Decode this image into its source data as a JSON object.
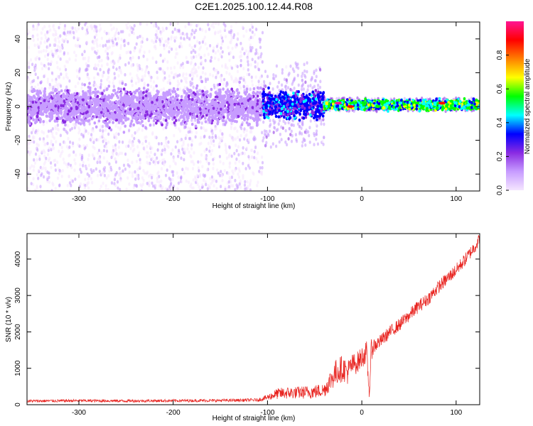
{
  "title": "C2E1.2025.100.12.44.R08",
  "colors": {
    "background": "#ffffff",
    "snr_line": "#e8231f",
    "colormap": [
      "#f5e6ff",
      "#c79cff",
      "#8a2be2",
      "#0000ff",
      "#00ffff",
      "#00ff00",
      "#ffff00",
      "#ff7f00",
      "#ff0000",
      "#ff1493"
    ]
  },
  "chart_data": [
    {
      "type": "heatmap",
      "xlabel": "Height of straight line (km)",
      "ylabel": "Frequency (Hz)",
      "xlim": [
        -355,
        125
      ],
      "ylim": [
        -50,
        50
      ],
      "xticks": [
        -300,
        -200,
        -100,
        0,
        100
      ],
      "yticks": [
        -40,
        -20,
        0,
        20,
        40
      ],
      "xtick_labels": [
        "-300",
        "-200",
        "-100",
        "0",
        "100"
      ],
      "ytick_labels": [
        "-40",
        "-20",
        "0",
        "20",
        "40"
      ],
      "colorbar": {
        "label": "Normalized spectral amplitude",
        "range": [
          0,
          1
        ],
        "ticks": [
          0.0,
          0.2,
          0.4,
          0.6,
          0.8
        ],
        "tick_labels": [
          "0.0",
          "0.2",
          "0.4",
          "0.6",
          "0.8"
        ]
      },
      "regions": [
        {
          "x_range": [
            -355,
            -105
          ],
          "center_freq": 0,
          "band_halfwidth": 8,
          "scatter_halfwidth": 50,
          "amplitude": 0.15
        },
        {
          "x_range": [
            -105,
            -40
          ],
          "center_freq": 1,
          "band_halfwidth": 6,
          "scatter_halfwidth": 25,
          "amplitude": 0.35
        },
        {
          "x_range": [
            -40,
            125
          ],
          "center_freq": 1,
          "band_halfwidth": 2,
          "scatter_halfwidth": 4,
          "amplitude": 0.55
        }
      ],
      "peaks": [
        {
          "x": -25,
          "freq": 2,
          "amplitude": 0.95
        },
        {
          "x": -12,
          "freq": 0,
          "amplitude": 0.9
        },
        {
          "x": 85,
          "freq": 2,
          "amplitude": 0.9
        }
      ]
    },
    {
      "type": "line",
      "xlabel": "Height of straight line (km)",
      "ylabel": "SNR (10 * v/v)",
      "xlim": [
        -355,
        125
      ],
      "ylim": [
        0,
        4700
      ],
      "xticks": [
        -300,
        -200,
        -100,
        0,
        100
      ],
      "yticks": [
        0,
        1000,
        2000,
        3000,
        4000
      ],
      "xtick_labels": [
        "-300",
        "-200",
        "-100",
        "0",
        "100"
      ],
      "ytick_labels": [
        "0",
        "1000",
        "2000",
        "3000",
        "4000"
      ],
      "series": [
        {
          "x": [
            -355,
            -300,
            -250,
            -200,
            -150,
            -110,
            -100,
            -90,
            -80,
            -70,
            -60,
            -50,
            -40,
            -30,
            -25,
            -20,
            -15,
            -10,
            -5,
            0,
            5,
            8,
            10,
            12,
            15,
            20,
            30,
            40,
            50,
            60,
            70,
            80,
            90,
            100,
            110,
            120,
            125
          ],
          "y": [
            100,
            110,
            105,
            110,
            115,
            130,
            200,
            300,
            320,
            330,
            340,
            360,
            400,
            800,
            950,
            1000,
            900,
            1100,
            1150,
            1300,
            1450,
            250,
            1500,
            1600,
            1650,
            1750,
            2000,
            2200,
            2450,
            2700,
            2900,
            3200,
            3450,
            3700,
            4000,
            4350,
            4550
          ],
          "noise": [
            40,
            40,
            40,
            40,
            40,
            45,
            80,
            150,
            170,
            170,
            180,
            190,
            200,
            350,
            400,
            350,
            350,
            300,
            300,
            300,
            300,
            100,
            300,
            250,
            200,
            180,
            180,
            180,
            180,
            180,
            180,
            180,
            180,
            180,
            180,
            180,
            180
          ]
        }
      ]
    }
  ]
}
